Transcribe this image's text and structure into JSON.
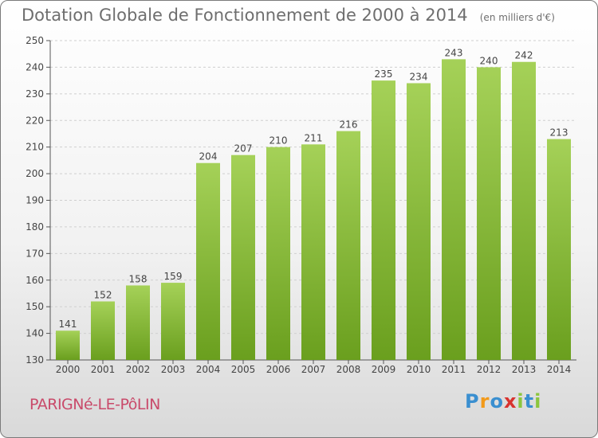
{
  "header": {
    "title": "Dotation Globale de Fonctionnement de 2000 à 2014",
    "subtitle": "(en milliers d'€)"
  },
  "footer": {
    "commune": "PARIGNé-LE-PôLIN",
    "logo_letters": [
      {
        "ch": "P",
        "color": "#3a8fd0"
      },
      {
        "ch": "r",
        "color": "#f29a1a"
      },
      {
        "ch": "o",
        "color": "#3a8fd0"
      },
      {
        "ch": "x",
        "color": "#d8332f"
      },
      {
        "ch": "i",
        "color": "#8cc63e"
      },
      {
        "ch": "t",
        "color": "#3a8fd0"
      },
      {
        "ch": "i",
        "color": "#8cc63e"
      }
    ]
  },
  "chart_data": {
    "type": "bar",
    "title": "Dotation Globale de Fonctionnement de 2000 à 2014",
    "subtitle": "(en milliers d'€)",
    "categories": [
      "2000",
      "2001",
      "2002",
      "2003",
      "2004",
      "2005",
      "2006",
      "2007",
      "2008",
      "2009",
      "2010",
      "2011",
      "2012",
      "2013",
      "2014"
    ],
    "values": [
      141,
      152,
      158,
      159,
      204,
      207,
      210,
      211,
      216,
      235,
      234,
      243,
      240,
      242,
      213
    ],
    "xlabel": "",
    "ylabel": "",
    "ylim": [
      130,
      250
    ],
    "yticks": [
      130,
      140,
      150,
      160,
      170,
      180,
      190,
      200,
      210,
      220,
      230,
      240,
      250
    ],
    "grid": true,
    "bar_color_top": "#a5d158",
    "bar_color_bottom": "#6a9f1e"
  }
}
